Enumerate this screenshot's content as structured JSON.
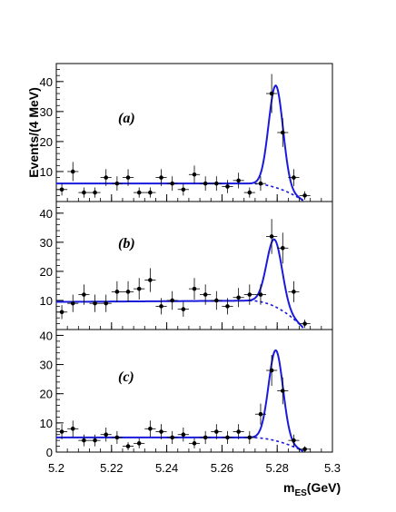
{
  "colors": {
    "fit": "#1a1adc",
    "points": "#000000",
    "frame": "#000000"
  },
  "chart_data": {
    "type": "scatter",
    "xlabel_main": "m",
    "xlabel_sub": "ES",
    "xlabel_unit": "(GeV)",
    "ylabel": "Events/(4 MeV)",
    "xlim": [
      5.2,
      5.3
    ],
    "x_ticks": [
      "5.2",
      "5.22",
      "5.24",
      "5.26",
      "5.28",
      "5.3"
    ],
    "bin_half_width": 0.002,
    "panels": [
      {
        "label": "(a)",
        "ylim": [
          0,
          46
        ],
        "y_ticks": [
          "10",
          "20",
          "30",
          "40"
        ],
        "points": [
          {
            "x": 5.202,
            "y": 4,
            "err": 2
          },
          {
            "x": 5.206,
            "y": 10,
            "err": 3.2
          },
          {
            "x": 5.21,
            "y": 3,
            "err": 1.7
          },
          {
            "x": 5.214,
            "y": 3,
            "err": 1.7
          },
          {
            "x": 5.218,
            "y": 8,
            "err": 2.8
          },
          {
            "x": 5.222,
            "y": 6,
            "err": 2.4
          },
          {
            "x": 5.226,
            "y": 8,
            "err": 2.8
          },
          {
            "x": 5.23,
            "y": 3,
            "err": 1.7
          },
          {
            "x": 5.234,
            "y": 3,
            "err": 1.7
          },
          {
            "x": 5.238,
            "y": 8,
            "err": 2.8
          },
          {
            "x": 5.242,
            "y": 6,
            "err": 2.4
          },
          {
            "x": 5.246,
            "y": 4,
            "err": 2
          },
          {
            "x": 5.25,
            "y": 9,
            "err": 3
          },
          {
            "x": 5.254,
            "y": 6,
            "err": 2.4
          },
          {
            "x": 5.258,
            "y": 6,
            "err": 2.4
          },
          {
            "x": 5.262,
            "y": 5,
            "err": 2.2
          },
          {
            "x": 5.266,
            "y": 7,
            "err": 2.6
          },
          {
            "x": 5.27,
            "y": 3,
            "err": 1.7
          },
          {
            "x": 5.274,
            "y": 6,
            "err": 2.4
          },
          {
            "x": 5.278,
            "y": 36,
            "err": 6.5
          },
          {
            "x": 5.282,
            "y": 23,
            "err": 4.8
          },
          {
            "x": 5.286,
            "y": 8,
            "err": 2.8
          },
          {
            "x": 5.29,
            "y": 2,
            "err": 1.4
          }
        ],
        "fit": {
          "b0": 6,
          "slope": 0,
          "peak_height": 34,
          "mean": 5.2795,
          "sigma": 0.0026
        }
      },
      {
        "label": "(b)",
        "ylim": [
          0,
          44
        ],
        "y_ticks": [
          "10",
          "20",
          "30",
          "40"
        ],
        "points": [
          {
            "x": 5.202,
            "y": 6,
            "err": 2.4
          },
          {
            "x": 5.206,
            "y": 9,
            "err": 3
          },
          {
            "x": 5.21,
            "y": 12,
            "err": 3.5
          },
          {
            "x": 5.214,
            "y": 9,
            "err": 3
          },
          {
            "x": 5.218,
            "y": 9,
            "err": 3
          },
          {
            "x": 5.222,
            "y": 13,
            "err": 3.6
          },
          {
            "x": 5.226,
            "y": 13,
            "err": 3.6
          },
          {
            "x": 5.23,
            "y": 14,
            "err": 3.7
          },
          {
            "x": 5.234,
            "y": 17,
            "err": 4.1
          },
          {
            "x": 5.238,
            "y": 8,
            "err": 2.8
          },
          {
            "x": 5.242,
            "y": 10,
            "err": 3.2
          },
          {
            "x": 5.246,
            "y": 7,
            "err": 2.6
          },
          {
            "x": 5.25,
            "y": 14,
            "err": 3.7
          },
          {
            "x": 5.254,
            "y": 12,
            "err": 3.5
          },
          {
            "x": 5.258,
            "y": 10,
            "err": 3.2
          },
          {
            "x": 5.262,
            "y": 8,
            "err": 2.8
          },
          {
            "x": 5.266,
            "y": 11,
            "err": 3.3
          },
          {
            "x": 5.27,
            "y": 12,
            "err": 3.5
          },
          {
            "x": 5.274,
            "y": 12,
            "err": 3.5
          },
          {
            "x": 5.278,
            "y": 32,
            "err": 6
          },
          {
            "x": 5.282,
            "y": 28,
            "err": 5.3
          },
          {
            "x": 5.286,
            "y": 13,
            "err": 3.6
          },
          {
            "x": 5.29,
            "y": 2,
            "err": 1.4
          }
        ],
        "fit": {
          "b0": 9.5,
          "slope": 0.06,
          "peak_height": 23,
          "mean": 5.279,
          "sigma": 0.0028
        }
      },
      {
        "label": "(c)",
        "ylim": [
          0,
          42
        ],
        "y_ticks": [
          "0",
          "10",
          "20",
          "30",
          "40"
        ],
        "points": [
          {
            "x": 5.202,
            "y": 7,
            "err": 2.6
          },
          {
            "x": 5.206,
            "y": 8,
            "err": 2.8
          },
          {
            "x": 5.21,
            "y": 4,
            "err": 2
          },
          {
            "x": 5.214,
            "y": 4,
            "err": 2
          },
          {
            "x": 5.218,
            "y": 6,
            "err": 2.4
          },
          {
            "x": 5.222,
            "y": 5,
            "err": 2.2
          },
          {
            "x": 5.226,
            "y": 2,
            "err": 1.4
          },
          {
            "x": 5.23,
            "y": 3,
            "err": 1.7
          },
          {
            "x": 5.234,
            "y": 8,
            "err": 2.8
          },
          {
            "x": 5.238,
            "y": 7,
            "err": 2.6
          },
          {
            "x": 5.242,
            "y": 5,
            "err": 2.2
          },
          {
            "x": 5.246,
            "y": 6,
            "err": 2.4
          },
          {
            "x": 5.25,
            "y": 3,
            "err": 1.7
          },
          {
            "x": 5.254,
            "y": 5,
            "err": 2.2
          },
          {
            "x": 5.258,
            "y": 7,
            "err": 2.6
          },
          {
            "x": 5.262,
            "y": 5,
            "err": 2.2
          },
          {
            "x": 5.266,
            "y": 7,
            "err": 2.6
          },
          {
            "x": 5.27,
            "y": 5,
            "err": 2.2
          },
          {
            "x": 5.274,
            "y": 13,
            "err": 3.6
          },
          {
            "x": 5.278,
            "y": 28,
            "err": 5.3
          },
          {
            "x": 5.282,
            "y": 21,
            "err": 4.6
          },
          {
            "x": 5.286,
            "y": 4,
            "err": 2
          },
          {
            "x": 5.29,
            "y": 1,
            "err": 1
          }
        ],
        "fit": {
          "b0": 5,
          "slope": 0,
          "peak_height": 31,
          "mean": 5.2795,
          "sigma": 0.0026
        }
      }
    ]
  }
}
